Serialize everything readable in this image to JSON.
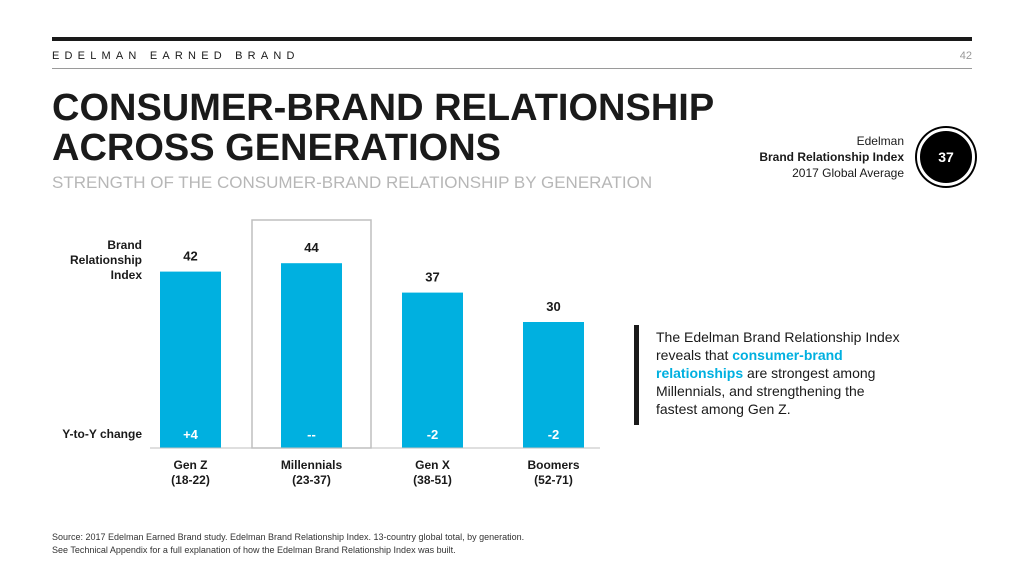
{
  "header": {
    "brand_line": "EDELMAN EARNED BRAND",
    "page_number": "42",
    "title": "CONSUMER-BRAND RELATIONSHIP ACROSS GENERATIONS",
    "subtitle": "STRENGTH OF THE CONSUMER-BRAND RELATIONSHIP BY GENERATION"
  },
  "index_badge": {
    "line1": "Edelman",
    "line2": "Brand Relationship Index",
    "line3": "2017 Global Average",
    "value": "37"
  },
  "row_labels": {
    "index_line1": "Brand",
    "index_line2": "Relationship Index",
    "yoy": "Y-to-Y change"
  },
  "chart_data": {
    "type": "bar",
    "categories": [
      "Gen Z",
      "Millennials",
      "Gen X",
      "Boomers"
    ],
    "age_ranges": [
      "(18-22)",
      "(23-37)",
      "(38-51)",
      "(52-71)"
    ],
    "values": [
      42,
      44,
      37,
      30
    ],
    "yoy_change": [
      "+4",
      "--",
      "-2",
      "-2"
    ],
    "highlighted_category": "Millennials",
    "bar_color": "#00B0E0",
    "ylim": [
      0,
      50
    ],
    "grid": false,
    "title": "STRENGTH OF THE CONSUMER-BRAND RELATIONSHIP BY GENERATION",
    "xlabel": "",
    "ylabel": "Brand Relationship Index"
  },
  "callout": {
    "text_before": "The Edelman Brand Relationship Index reveals that ",
    "highlight": "consumer-brand relationships",
    "text_after": " are strongest among Millennials, and strengthening the fastest among Gen Z.",
    "highlight_color": "#00B0E0"
  },
  "source": {
    "line1": "Source: 2017 Edelman Earned Brand study. Edelman Brand Relationship Index. 13-country global total, by generation.",
    "line2": "See Technical Appendix for a full explanation of how the Edelman Brand Relationship Index was built."
  }
}
